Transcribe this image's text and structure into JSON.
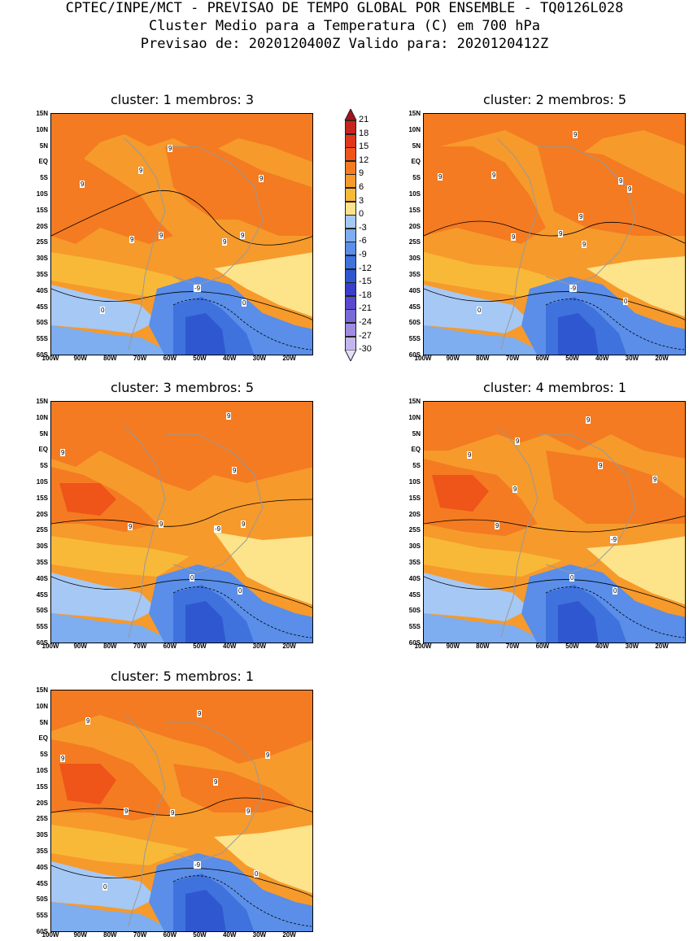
{
  "header": {
    "line1": "CPTEC/INPE/MCT - PREVISAO DE TEMPO GLOBAL POR ENSEMBLE - TQ0126L028",
    "line2": "Cluster Medio para a Temperatura (C) em 700 hPa",
    "line3": "Previsao de: 2020120400Z   Valido para: 2020120412Z"
  },
  "panels": [
    {
      "id": "1",
      "title": "cluster: 1  membros: 3"
    },
    {
      "id": "2",
      "title": "cluster: 2  membros: 5"
    },
    {
      "id": "3",
      "title": "cluster: 3  membros: 5"
    },
    {
      "id": "4",
      "title": "cluster: 4  membros: 1"
    },
    {
      "id": "5",
      "title": "cluster: 5  membros: 1"
    }
  ],
  "axes": {
    "lat_labels": [
      "15N",
      "10N",
      "5N",
      "EQ",
      "5S",
      "10S",
      "15S",
      "20S",
      "25S",
      "30S",
      "35S",
      "40S",
      "45S",
      "50S",
      "55S",
      "60S"
    ],
    "lon_labels": [
      "100W",
      "90W",
      "80W",
      "70W",
      "60W",
      "50W",
      "40W",
      "30W",
      "20W"
    ]
  },
  "colorbar": {
    "levels": [
      "21",
      "18",
      "15",
      "12",
      "9",
      "6",
      "3",
      "0",
      "-3",
      "-6",
      "-9",
      "-12",
      "-15",
      "-18",
      "-21",
      "-24",
      "-27",
      "-30"
    ],
    "colors": [
      "#a5141d",
      "#c8241e",
      "#e0361c",
      "#ef5419",
      "#f47b21",
      "#f69a2c",
      "#f8b938",
      "#fde38a",
      "#a6c8f4",
      "#7eadf0",
      "#5a8ee8",
      "#3f72dd",
      "#2f58d0",
      "#3a3ecb",
      "#5849cf",
      "#7a6ad8",
      "#a08be2",
      "#c6b6ee",
      "#e6ddf6"
    ]
  },
  "contour_labels": {
    "p1": [
      "9",
      "9",
      "9",
      "9",
      "9",
      "9",
      "9",
      "9",
      "-9",
      "0",
      "0"
    ],
    "p2": [
      "9",
      "9",
      "9",
      "9",
      "9",
      "9",
      "9",
      "9",
      "9",
      "-9",
      "0",
      "0"
    ],
    "p3": [
      "9",
      "9",
      "9",
      "9",
      "9",
      "9",
      "-9",
      "0",
      "0"
    ],
    "p4": [
      "9",
      "9",
      "9",
      "9",
      "9",
      "9",
      "9",
      "-9",
      "0",
      "0"
    ],
    "p5": [
      "9",
      "9",
      "9",
      "9",
      "9",
      "9",
      "9",
      "9",
      "-9",
      "0",
      "0"
    ]
  }
}
